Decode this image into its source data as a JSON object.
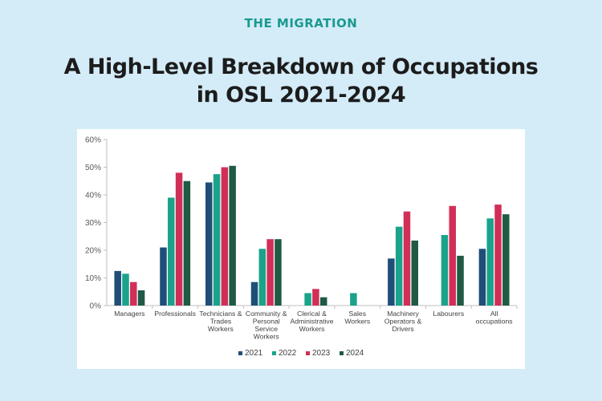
{
  "header": {
    "brand": "THE MIGRATION",
    "title_line1": "A High-Level Breakdown of Occupations",
    "title_line2": "in OSL 2021-2024"
  },
  "chart_data": {
    "type": "bar",
    "title": "",
    "xlabel": "",
    "ylabel": "",
    "ylim": [
      0,
      60
    ],
    "y_ticks": [
      "0%",
      "10%",
      "20%",
      "30%",
      "40%",
      "50%",
      "60%"
    ],
    "grid": false,
    "legend_position": "bottom",
    "categories": [
      [
        "Managers"
      ],
      [
        "Professionals"
      ],
      [
        "Technicians &",
        "Trades",
        "Workers"
      ],
      [
        "Community &",
        "Personal",
        "Service",
        "Workers"
      ],
      [
        "Clerical &",
        "Administrative",
        "Workers"
      ],
      [
        "Sales",
        "Workers"
      ],
      [
        "Machinery",
        "Operators &",
        "Drivers"
      ],
      [
        "Labourers"
      ],
      [
        "All",
        "occupations"
      ]
    ],
    "series": [
      {
        "name": "2021",
        "color": "#1f4e79",
        "values": [
          12.5,
          21,
          44.5,
          8.5,
          null,
          null,
          17,
          null,
          20.5
        ]
      },
      {
        "name": "2022",
        "color": "#1aa38a",
        "values": [
          11.5,
          39,
          47.5,
          20.5,
          4.5,
          4.5,
          28.5,
          25.5,
          31.5
        ]
      },
      {
        "name": "2023",
        "color": "#d12f58",
        "values": [
          8.5,
          48,
          50,
          24,
          6,
          null,
          34,
          36,
          36.5
        ]
      },
      {
        "name": "2024",
        "color": "#1f5a45",
        "values": [
          5.5,
          45,
          50.5,
          24,
          3,
          null,
          23.5,
          18,
          33
        ]
      }
    ]
  }
}
